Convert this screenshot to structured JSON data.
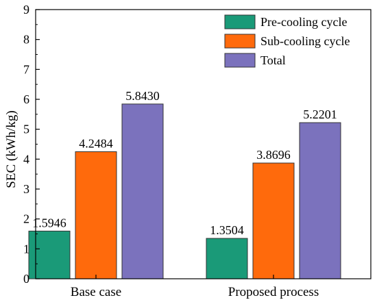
{
  "chart_data": {
    "type": "bar",
    "ylabel": "SEC (kWh/kg)",
    "xlabel": "",
    "ylim": [
      0,
      9
    ],
    "yticks": [
      0,
      1,
      2,
      3,
      4,
      5,
      6,
      7,
      8,
      9
    ],
    "categories": [
      "Base case",
      "Proposed process"
    ],
    "series": [
      {
        "name": "Pre-cooling cycle",
        "color": "#1a9a78",
        "values": [
          1.5946,
          1.3504
        ],
        "labels": [
          "1.5946",
          "1.3504"
        ]
      },
      {
        "name": "Sub-cooling cycle",
        "color": "#ff6a0c",
        "values": [
          4.2484,
          3.8696
        ],
        "labels": [
          "4.2484",
          "3.8696"
        ]
      },
      {
        "name": "Total",
        "color": "#7b72bd",
        "values": [
          5.843,
          5.2201
        ],
        "labels": [
          "5.8430",
          "5.2201"
        ]
      }
    ],
    "legend_position": "top-right",
    "grid": false
  }
}
